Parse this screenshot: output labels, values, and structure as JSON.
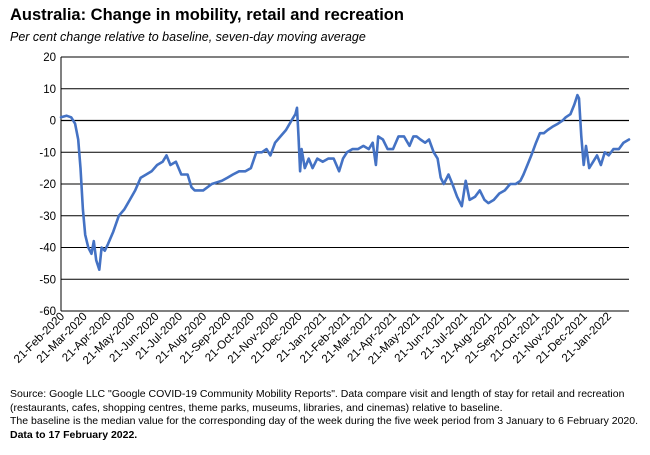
{
  "title": "Australia: Change in mobility, retail and recreation",
  "subtitle": "Per cent change relative to baseline, seven-day moving average",
  "source": {
    "line1": "Source: Google LLC \"Google COVID-19 Community Mobility Reports\".  Data compare visit and length of stay for retail and recreation (restaurants, cafes, shopping centres, theme parks, museums, libraries, and cinemas) relative to baseline.",
    "line2": " The baseline is the median value for the corresponding day of the week during the five week period from 3 January to 6 February 2020. ",
    "line2_bold": " Data to 17 February 2022."
  },
  "colors": {
    "line": "#4472C4",
    "grid": "#000000"
  },
  "chart_data": {
    "type": "line",
    "ylim": [
      -60,
      20
    ],
    "yticks": [
      -60,
      -50,
      -40,
      -30,
      -20,
      -10,
      0,
      10,
      20
    ],
    "xlim": [
      "2020-02-21",
      "2022-02-17"
    ],
    "xtick_labels": [
      "21-Feb-2020",
      "21-Mar-2020",
      "21-Apr-2020",
      "21-May-2020",
      "21-Jun-2020",
      "21-Jul-2020",
      "21-Aug-2020",
      "21-Sep-2020",
      "21-Oct-2020",
      "21-Nov-2020",
      "21-Dec-2020",
      "21-Jan-2021",
      "21-Feb-2021",
      "21-Mar-2021",
      "21-Apr-2021",
      "21-May-2021",
      "21-Jun-2021",
      "21-Jul-2021",
      "21-Aug-2021",
      "21-Sep-2021",
      "21-Oct-2021",
      "21-Nov-2021",
      "21-Dec-2021",
      "21-Jan-2022"
    ],
    "grid": "horizontal",
    "series": [
      {
        "points": [
          [
            "2020-02-21",
            1
          ],
          [
            "2020-02-28",
            1.5
          ],
          [
            "2020-03-05",
            1
          ],
          [
            "2020-03-10",
            -1
          ],
          [
            "2020-03-14",
            -6
          ],
          [
            "2020-03-17",
            -15
          ],
          [
            "2020-03-20",
            -28
          ],
          [
            "2020-03-23",
            -36
          ],
          [
            "2020-03-27",
            -40
          ],
          [
            "2020-03-31",
            -42
          ],
          [
            "2020-04-03",
            -38
          ],
          [
            "2020-04-06",
            -44
          ],
          [
            "2020-04-10",
            -47
          ],
          [
            "2020-04-13",
            -40
          ],
          [
            "2020-04-17",
            -41
          ],
          [
            "2020-04-21",
            -39
          ],
          [
            "2020-04-28",
            -35
          ],
          [
            "2020-05-05",
            -30
          ],
          [
            "2020-05-12",
            -28
          ],
          [
            "2020-05-19",
            -25
          ],
          [
            "2020-05-26",
            -22
          ],
          [
            "2020-06-02",
            -18
          ],
          [
            "2020-06-09",
            -17
          ],
          [
            "2020-06-16",
            -16
          ],
          [
            "2020-06-23",
            -14
          ],
          [
            "2020-06-30",
            -13
          ],
          [
            "2020-07-05",
            -11
          ],
          [
            "2020-07-10",
            -14
          ],
          [
            "2020-07-17",
            -13
          ],
          [
            "2020-07-24",
            -17
          ],
          [
            "2020-08-01",
            -17
          ],
          [
            "2020-08-06",
            -21
          ],
          [
            "2020-08-10",
            -22
          ],
          [
            "2020-08-21",
            -22
          ],
          [
            "2020-09-01",
            -20
          ],
          [
            "2020-09-14",
            -19
          ],
          [
            "2020-09-21",
            -18
          ],
          [
            "2020-09-28",
            -17
          ],
          [
            "2020-10-06",
            -16
          ],
          [
            "2020-10-14",
            -16
          ],
          [
            "2020-10-21",
            -15
          ],
          [
            "2020-10-28",
            -10
          ],
          [
            "2020-11-04",
            -10
          ],
          [
            "2020-11-10",
            -9
          ],
          [
            "2020-11-15",
            -11
          ],
          [
            "2020-11-21",
            -7
          ],
          [
            "2020-11-28",
            -5
          ],
          [
            "2020-12-05",
            -3
          ],
          [
            "2020-12-12",
            0
          ],
          [
            "2020-12-17",
            2
          ],
          [
            "2020-12-19",
            4
          ],
          [
            "2020-12-21",
            -5
          ],
          [
            "2020-12-23",
            -16
          ],
          [
            "2020-12-25",
            -9
          ],
          [
            "2020-12-29",
            -15
          ],
          [
            "2021-01-03",
            -12
          ],
          [
            "2021-01-08",
            -15
          ],
          [
            "2021-01-14",
            -12
          ],
          [
            "2021-01-21",
            -13
          ],
          [
            "2021-01-28",
            -12
          ],
          [
            "2021-02-04",
            -12
          ],
          [
            "2021-02-11",
            -16
          ],
          [
            "2021-02-16",
            -12
          ],
          [
            "2021-02-21",
            -10
          ],
          [
            "2021-02-28",
            -9
          ],
          [
            "2021-03-07",
            -9
          ],
          [
            "2021-03-14",
            -8
          ],
          [
            "2021-03-21",
            -9
          ],
          [
            "2021-03-26",
            -7
          ],
          [
            "2021-03-30",
            -14
          ],
          [
            "2021-04-02",
            -5
          ],
          [
            "2021-04-08",
            -6
          ],
          [
            "2021-04-14",
            -9
          ],
          [
            "2021-04-21",
            -9
          ],
          [
            "2021-04-28",
            -5
          ],
          [
            "2021-05-05",
            -5
          ],
          [
            "2021-05-12",
            -8
          ],
          [
            "2021-05-17",
            -5
          ],
          [
            "2021-05-21",
            -5
          ],
          [
            "2021-05-26",
            -6
          ],
          [
            "2021-06-01",
            -7
          ],
          [
            "2021-06-06",
            -6
          ],
          [
            "2021-06-12",
            -10
          ],
          [
            "2021-06-17",
            -12
          ],
          [
            "2021-06-21",
            -18
          ],
          [
            "2021-06-25",
            -20
          ],
          [
            "2021-07-01",
            -17
          ],
          [
            "2021-07-06",
            -20
          ],
          [
            "2021-07-12",
            -24
          ],
          [
            "2021-07-18",
            -27
          ],
          [
            "2021-07-23",
            -19
          ],
          [
            "2021-07-28",
            -25
          ],
          [
            "2021-08-04",
            -24
          ],
          [
            "2021-08-10",
            -22
          ],
          [
            "2021-08-16",
            -25
          ],
          [
            "2021-08-21",
            -26
          ],
          [
            "2021-08-28",
            -25
          ],
          [
            "2021-09-04",
            -23
          ],
          [
            "2021-09-11",
            -22
          ],
          [
            "2021-09-18",
            -20
          ],
          [
            "2021-09-25",
            -20
          ],
          [
            "2021-10-01",
            -19
          ],
          [
            "2021-10-05",
            -17
          ],
          [
            "2021-10-10",
            -14
          ],
          [
            "2021-10-15",
            -11
          ],
          [
            "2021-10-21",
            -7
          ],
          [
            "2021-10-26",
            -4
          ],
          [
            "2021-10-31",
            -4
          ],
          [
            "2021-11-05",
            -3
          ],
          [
            "2021-11-11",
            -2
          ],
          [
            "2021-11-18",
            -1
          ],
          [
            "2021-11-24",
            0
          ],
          [
            "2021-11-28",
            1
          ],
          [
            "2021-12-04",
            2
          ],
          [
            "2021-12-09",
            5
          ],
          [
            "2021-12-13",
            8
          ],
          [
            "2021-12-15",
            7
          ],
          [
            "2021-12-18",
            -5
          ],
          [
            "2021-12-21",
            -14
          ],
          [
            "2021-12-24",
            -8
          ],
          [
            "2021-12-28",
            -15
          ],
          [
            "2022-01-02",
            -13
          ],
          [
            "2022-01-07",
            -11
          ],
          [
            "2022-01-12",
            -14
          ],
          [
            "2022-01-17",
            -10
          ],
          [
            "2022-01-22",
            -11
          ],
          [
            "2022-01-28",
            -9
          ],
          [
            "2022-02-04",
            -9
          ],
          [
            "2022-02-10",
            -7
          ],
          [
            "2022-02-17",
            -6
          ]
        ]
      }
    ]
  }
}
